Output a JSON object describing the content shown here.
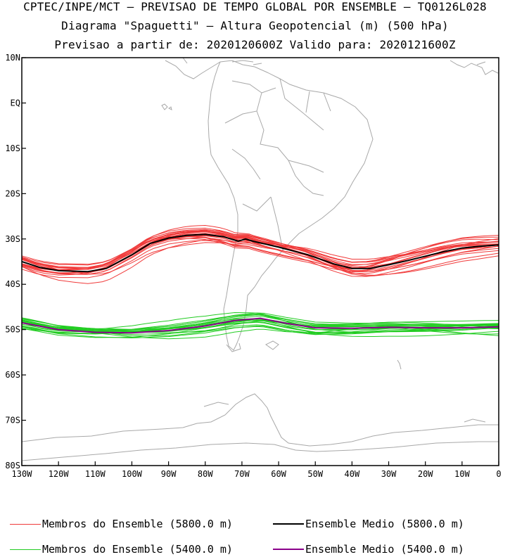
{
  "titles": {
    "line1": "CPTEC/INPE/MCT – PREVISAO DE TEMPO GLOBAL POR ENSEMBLE – TQ0126L028",
    "line2": "Diagrama \"Spaguetti\" – Altura Geopotencial (m) (500 hPa)",
    "line3": "Previsao a partir de: 2020120600Z  Valido para: 2020121600Z"
  },
  "colors": {
    "members_5800": "#f03a3a",
    "members_5400": "#22cc22",
    "mean_5800": "#000000",
    "mean_5400": "#8a008a",
    "coast": "#a8a8a8",
    "frame": "#000000"
  },
  "axes": {
    "lon_labels": [
      "130W",
      "120W",
      "110W",
      "100W",
      "90W",
      "80W",
      "70W",
      "60W",
      "50W",
      "40W",
      "30W",
      "20W",
      "10W",
      "0"
    ],
    "lat_labels": [
      "10N",
      "EQ",
      "10S",
      "20S",
      "30S",
      "40S",
      "50S",
      "60S",
      "70S",
      "80S"
    ],
    "lon_range": [
      -130,
      0
    ],
    "lat_range": [
      -80,
      10
    ]
  },
  "legend": [
    {
      "label": "Membros do Ensemble (5800.0 m)",
      "color_key": "members_5800"
    },
    {
      "label": "Ensemble Medio (5800.0 m)",
      "color_key": "mean_5800"
    },
    {
      "label": "Membros do Ensemble (5400.0 m)",
      "color_key": "members_5400"
    },
    {
      "label": "Ensemble Medio (5400.0 m)",
      "color_key": "mean_5400"
    }
  ],
  "contours": {
    "mean_5800": [
      [
        -130,
        -35
      ],
      [
        -125,
        -36.3
      ],
      [
        -120,
        -37
      ],
      [
        -112,
        -37.2
      ],
      [
        -107,
        -36.5
      ],
      [
        -100,
        -33.5
      ],
      [
        -95,
        -31
      ],
      [
        -90,
        -29.8
      ],
      [
        -85,
        -29.2
      ],
      [
        -80,
        -29
      ],
      [
        -75,
        -29.5
      ],
      [
        -71,
        -30.5
      ],
      [
        -69,
        -30
      ],
      [
        -67,
        -30.5
      ],
      [
        -60,
        -31.8
      ],
      [
        -52,
        -33.5
      ],
      [
        -45,
        -35.5
      ],
      [
        -40,
        -36.5
      ],
      [
        -35,
        -36.5
      ],
      [
        -30,
        -35.7
      ],
      [
        -25,
        -34.8
      ],
      [
        -20,
        -33.8
      ],
      [
        -15,
        -32.8
      ],
      [
        -10,
        -32
      ],
      [
        -5,
        -31.6
      ],
      [
        0,
        -31.3
      ]
    ],
    "mean_5400": [
      [
        -130,
        -48.5
      ],
      [
        -120,
        -50
      ],
      [
        -110,
        -50.6
      ],
      [
        -100,
        -50.7
      ],
      [
        -90,
        -50.2
      ],
      [
        -80,
        -49.2
      ],
      [
        -72,
        -48
      ],
      [
        -65,
        -47.5
      ],
      [
        -58,
        -48.6
      ],
      [
        -50,
        -49.6
      ],
      [
        -40,
        -49.7
      ],
      [
        -30,
        -49.5
      ],
      [
        -20,
        -49.6
      ],
      [
        -10,
        -49.6
      ],
      [
        0,
        -49.4
      ]
    ]
  }
}
